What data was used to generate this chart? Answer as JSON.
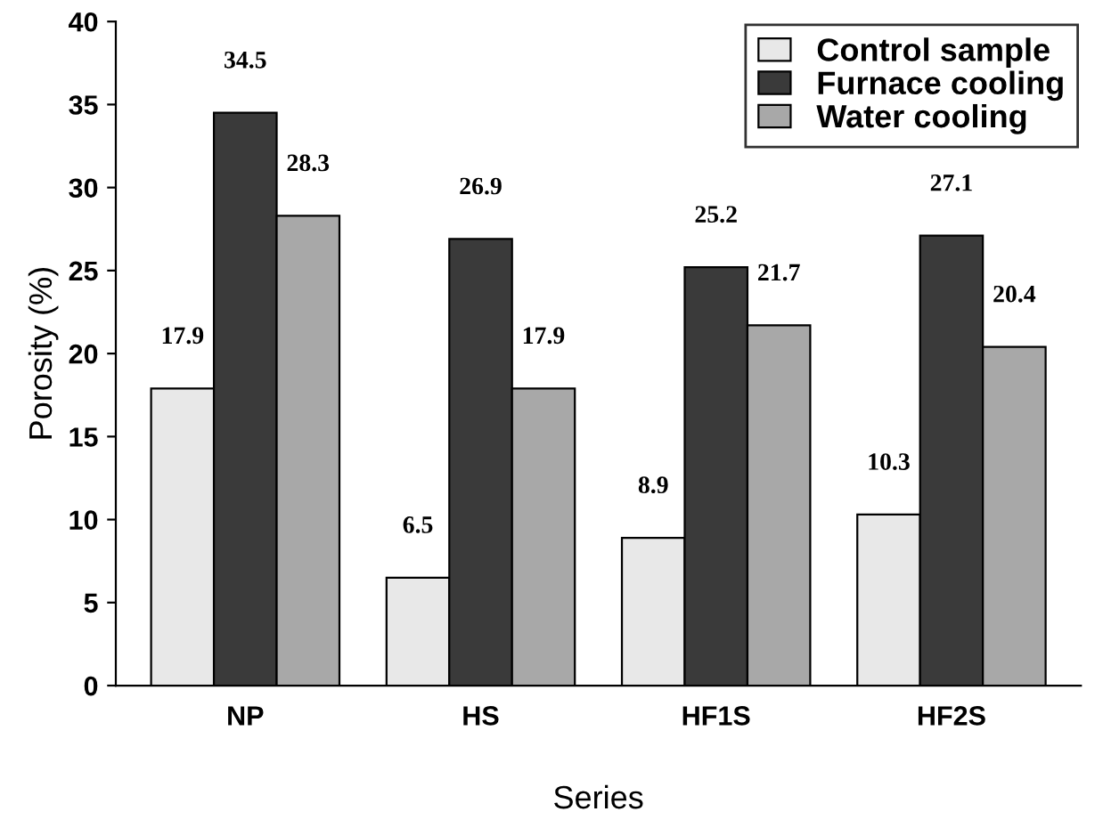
{
  "chart_data": {
    "type": "bar",
    "xlabel": "Series",
    "ylabel": "Porosity (%)",
    "categories": [
      "NP",
      "HS",
      "HF1S",
      "HF2S"
    ],
    "series": [
      {
        "name": "Control sample",
        "color": "#e8e8e8",
        "values": [
          17.9,
          6.5,
          8.9,
          10.3
        ]
      },
      {
        "name": "Furnace cooling",
        "color": "#3a3a3a",
        "values": [
          34.5,
          26.9,
          25.2,
          27.1
        ]
      },
      {
        "name": "Water cooling",
        "color": "#a8a8a8",
        "values": [
          28.3,
          17.9,
          21.7,
          20.4
        ]
      }
    ],
    "ylim": [
      0,
      40
    ],
    "yticks": [
      0,
      5,
      10,
      15,
      20,
      25,
      30,
      35,
      40
    ],
    "data_labels": true,
    "legend": "top right",
    "grid": false
  }
}
